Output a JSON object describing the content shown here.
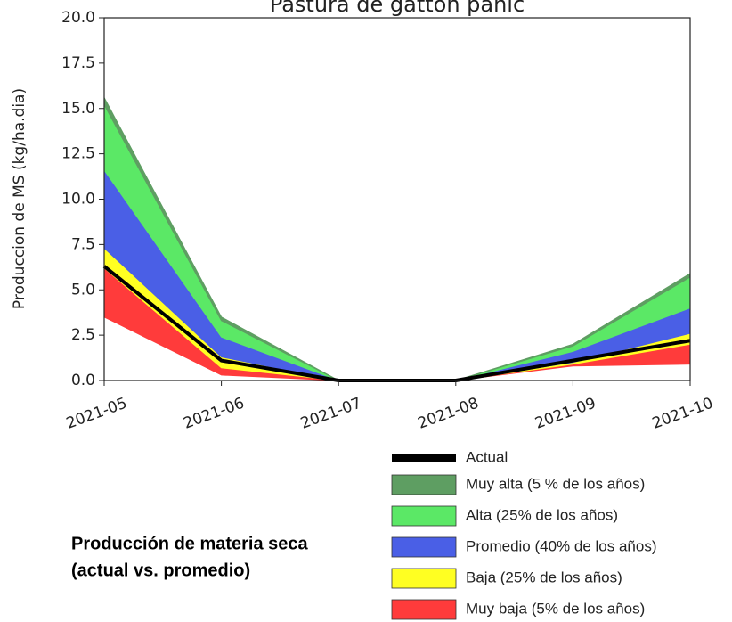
{
  "chart_data": {
    "type": "area",
    "title": "Pastura de gatton panic",
    "ylabel": "Produccion de MS (kg/ha.dia)",
    "caption": [
      "Producción de materia seca",
      "(actual vs. promedio)"
    ],
    "categories": [
      "2021-05",
      "2021-06",
      "2021-07",
      "2021-08",
      "2021-09",
      "2021-10"
    ],
    "baseline": [
      3.5,
      0.3,
      0,
      0,
      0.8,
      0.9
    ],
    "series": [
      {
        "name": "Actual",
        "type": "line",
        "color": "#000000",
        "values": [
          6.3,
          1.1,
          0,
          0,
          1.1,
          2.2
        ]
      },
      {
        "name": "Muy alta (5 % de los años)",
        "color": "#5e9e62",
        "values": [
          0.4,
          0.2,
          0,
          0,
          0.1,
          0.2
        ]
      },
      {
        "name": "Alta (25% de los años)",
        "color": "#5be866",
        "values": [
          3.6,
          0.9,
          0,
          0,
          0.3,
          1.7
        ]
      },
      {
        "name": "Promedio (40% de los años)",
        "color": "#4a5fe6",
        "values": [
          4.3,
          1.1,
          0,
          0,
          0.6,
          1.4
        ]
      },
      {
        "name": "Baja (25% de los años)",
        "color": "#ffff22",
        "values": [
          1.1,
          0.6,
          0,
          0,
          0.1,
          0.6
        ]
      },
      {
        "name": "Muy baja (5% de los años)",
        "color": "#ff3b3b",
        "values": [
          2.7,
          0.4,
          0,
          0,
          0.1,
          1.1
        ]
      }
    ],
    "ylim": [
      0,
      20
    ],
    "yticks": [
      {
        "value": 0,
        "label": "0.0"
      },
      2.5,
      {
        "value": 5,
        "label": "5.0"
      },
      7.5,
      {
        "value": 10,
        "label": "10.0"
      },
      12.5,
      {
        "value": 15,
        "label": "15.0"
      },
      17.5,
      {
        "value": 20,
        "label": "20.0"
      }
    ]
  }
}
